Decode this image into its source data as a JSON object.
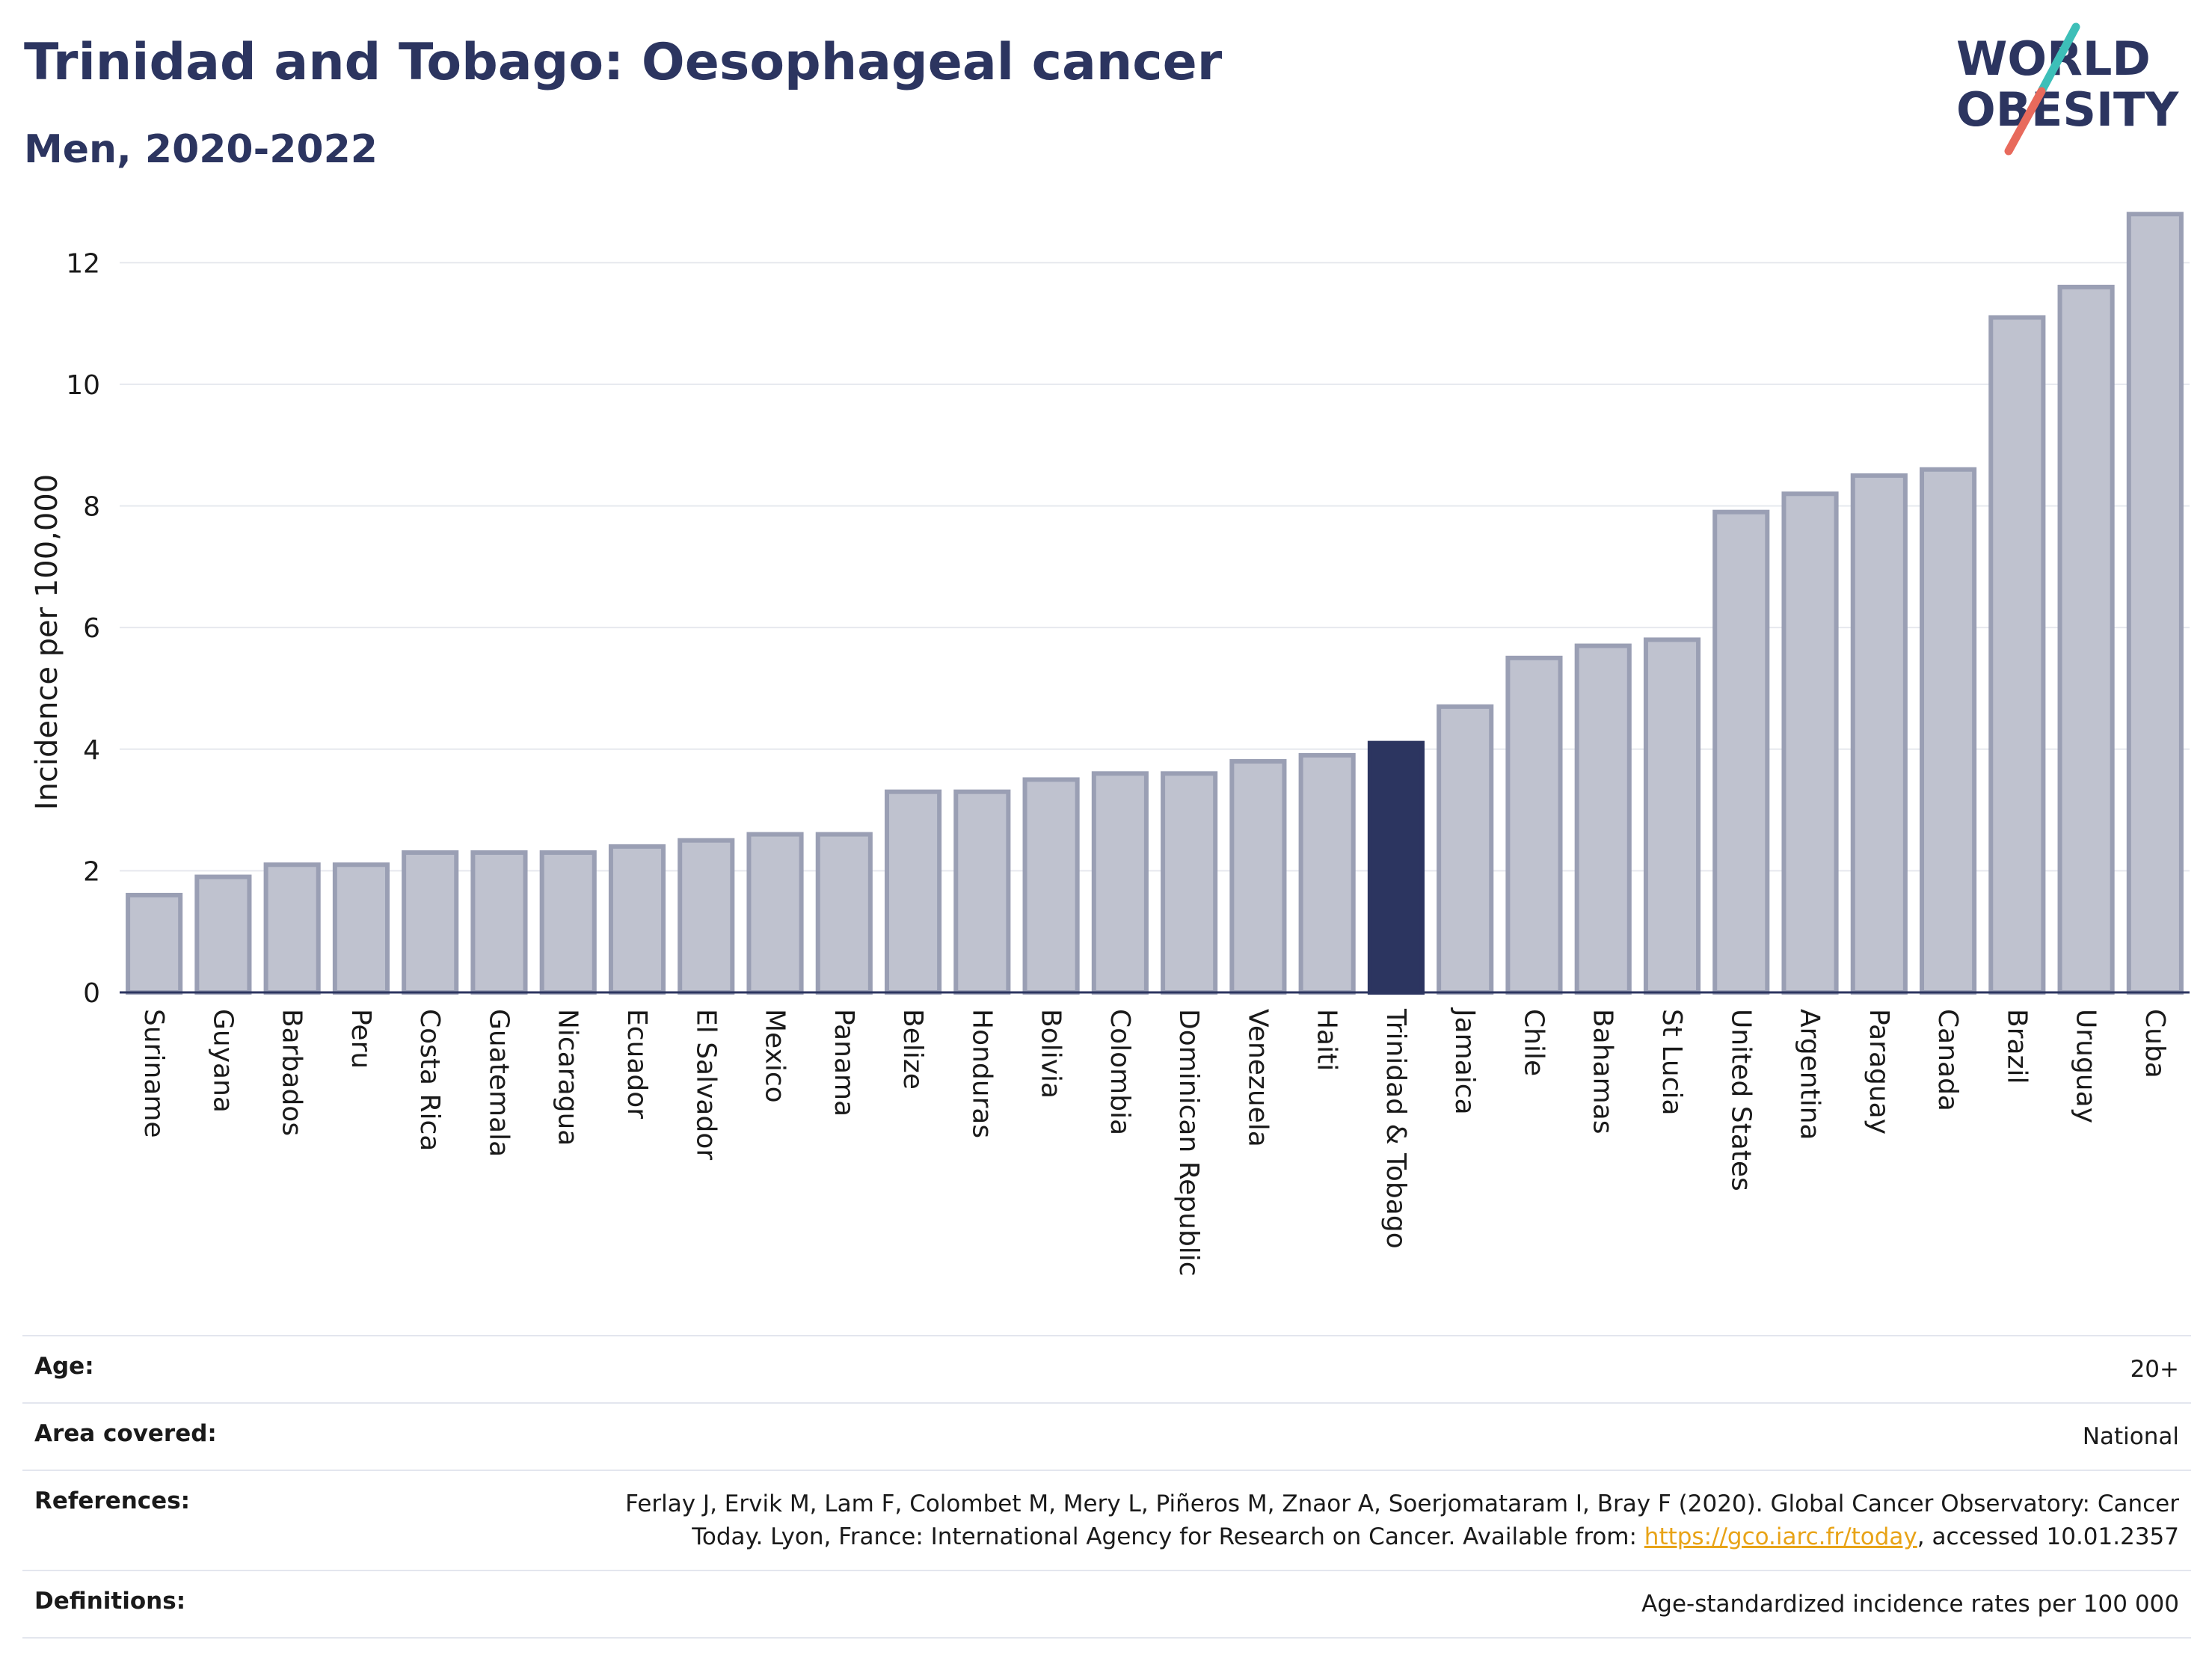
{
  "header": {
    "title": "Trinidad and Tobago: Oesophageal cancer",
    "subtitle": "Men, 2020-2022"
  },
  "logo": {
    "line1": "WORLD",
    "line2": "OBESITY"
  },
  "colors": {
    "bar": "#bfc2cf",
    "bar_stroke": "#9a9fb4",
    "highlight": "#2c3560",
    "grid": "#e6e8ee",
    "title": "#2c3560",
    "logo_teal": "#3dbfb8",
    "logo_coral": "#e86a5c",
    "link": "#e8a317"
  },
  "chart_data": {
    "type": "bar",
    "ylabel": "Incidence per 100,000",
    "ylim": [
      0,
      13
    ],
    "yticks": [
      0,
      2,
      4,
      6,
      8,
      10,
      12
    ],
    "highlight": "Trinidad & Tobago",
    "categories": [
      "Suriname",
      "Guyana",
      "Barbados",
      "Peru",
      "Costa Rica",
      "Guatemala",
      "Nicaragua",
      "Ecuador",
      "El Salvador",
      "Mexico",
      "Panama",
      "Belize",
      "Honduras",
      "Bolivia",
      "Colombia",
      "Dominican Republic",
      "Venezuela",
      "Haiti",
      "Trinidad & Tobago",
      "Jamaica",
      "Chile",
      "Bahamas",
      "St Lucia",
      "United States",
      "Argentina",
      "Paraguay",
      "Canada",
      "Brazil",
      "Uruguay",
      "Cuba"
    ],
    "values": [
      1.6,
      1.9,
      2.1,
      2.1,
      2.3,
      2.3,
      2.3,
      2.4,
      2.5,
      2.6,
      2.6,
      3.3,
      3.3,
      3.5,
      3.6,
      3.6,
      3.8,
      3.9,
      4.1,
      4.7,
      5.5,
      5.7,
      5.8,
      7.9,
      8.2,
      8.5,
      8.6,
      11.1,
      11.6,
      12.8
    ]
  },
  "info": {
    "age_label": "Age:",
    "age_value": "20+",
    "area_label": "Area covered:",
    "area_value": "National",
    "ref_label": "References:",
    "ref_line1": "Ferlay J, Ervik M, Lam F, Colombet M, Mery L, Piñeros M, Znaor A, Soerjomataram I, Bray F (2020). Global Cancer Observatory: Cancer",
    "ref_line2_pre": "Today. Lyon, France: International Agency for Research on Cancer. Available from: ",
    "ref_link": "https://gco.iarc.fr/today",
    "ref_line2_post": ", accessed 10.01.2357",
    "def_label": "Definitions:",
    "def_value": "Age-standardized incidence rates per 100 000"
  }
}
